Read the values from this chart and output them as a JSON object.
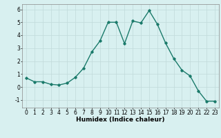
{
  "x": [
    0,
    1,
    2,
    3,
    4,
    5,
    6,
    7,
    8,
    9,
    10,
    11,
    12,
    13,
    14,
    15,
    16,
    17,
    18,
    19,
    20,
    21,
    22,
    23
  ],
  "y": [
    0.7,
    0.4,
    0.4,
    0.2,
    0.15,
    0.3,
    0.75,
    1.45,
    2.7,
    3.55,
    5.0,
    5.0,
    3.35,
    5.1,
    4.95,
    5.9,
    4.85,
    3.4,
    2.2,
    1.3,
    0.85,
    -0.3,
    -1.1,
    -1.1
  ],
  "line_color": "#1a7a6a",
  "marker": "D",
  "markersize": 1.8,
  "linewidth": 1.0,
  "bg_color": "#d8f0f0",
  "grid_color": "#c0dada",
  "xlabel": "Humidex (Indice chaleur)",
  "ylim": [
    -1.6,
    6.4
  ],
  "xlim": [
    -0.5,
    23.5
  ],
  "yticks": [
    -1,
    0,
    1,
    2,
    3,
    4,
    5,
    6
  ],
  "xticks": [
    0,
    1,
    2,
    3,
    4,
    5,
    6,
    7,
    8,
    9,
    10,
    11,
    12,
    13,
    14,
    15,
    16,
    17,
    18,
    19,
    20,
    21,
    22,
    23
  ],
  "xlabel_fontsize": 6.5,
  "tick_fontsize": 5.5
}
